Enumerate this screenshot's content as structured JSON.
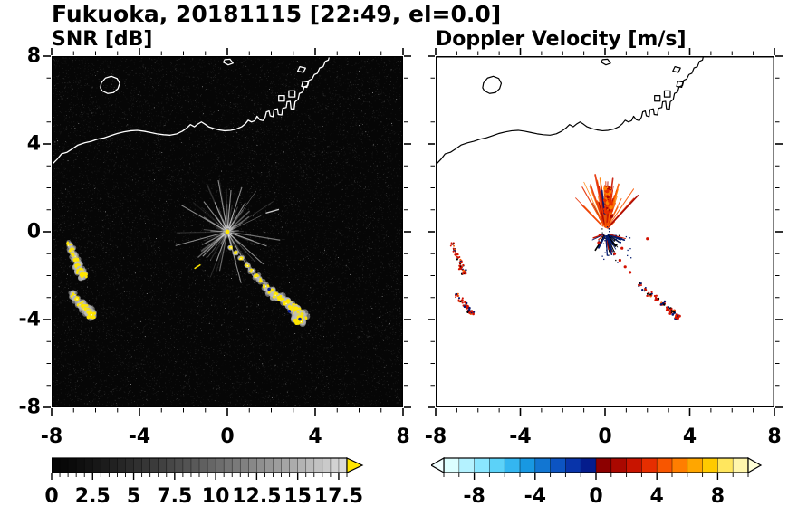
{
  "header": {
    "title": "Fukuoka, 20181115 [22:49, el=0.0]"
  },
  "chart_data": [
    {
      "type": "heatmap",
      "variant": "radar_ppi",
      "title": "SNR [dB]",
      "xlim": [
        -8,
        8
      ],
      "ylim": [
        -8,
        8
      ],
      "xticks": [
        -8,
        -4,
        0,
        4,
        8
      ],
      "yticks": [
        8,
        4,
        0,
        -4,
        -8
      ],
      "minor_tick_step": 1,
      "background": "#060606",
      "colorbar": {
        "min": 0,
        "max": 18,
        "box_step": 0.5,
        "tick_step": 0.5,
        "major_step": 2.5,
        "labels": [
          "0",
          "2.5",
          "5",
          "7.5",
          "10",
          "12.5",
          "15",
          "17.5"
        ],
        "label_values": [
          0,
          2.5,
          5,
          7.5,
          10,
          12.5,
          15,
          17.5
        ],
        "palette": "grayscale",
        "gray_min": 5,
        "gray_max": 222,
        "gamma": 1.3,
        "over_color": "#ffe600"
      },
      "features": {
        "noise": true,
        "streaks": {
          "center": [
            0,
            0
          ],
          "count": 72,
          "accent_angles": [
            58,
            72,
            85,
            100,
            113,
            128,
            150,
            195,
            225,
            250,
            285,
            300,
            318,
            340
          ]
        },
        "center_dot": {
          "xy": [
            0,
            0
          ],
          "color": "#ffe600"
        },
        "dashes": [
          {
            "from": [
              1.75,
              0.85
            ],
            "to": [
              2.35,
              1.02
            ],
            "color": "#c8c8c8",
            "width": 1.4
          },
          {
            "from": [
              -1.5,
              -1.68
            ],
            "to": [
              -1.22,
              -1.5
            ],
            "color": "#ffe600",
            "width": 1.6
          }
        ],
        "echo_chains": [
          {
            "points": [
              [
                0.15,
                -0.72
              ],
              [
                0.38,
                -0.95
              ],
              [
                0.62,
                -1.22
              ],
              [
                0.9,
                -1.52
              ],
              [
                1.12,
                -1.78
              ],
              [
                1.32,
                -2.02
              ],
              [
                1.52,
                -2.22
              ]
            ],
            "s0": 0.05,
            "s1": 0.1
          },
          {
            "points": [
              [
                1.78,
                -2.5
              ],
              [
                2.0,
                -2.72
              ],
              [
                2.2,
                -2.9
              ],
              [
                2.45,
                -3.05
              ],
              [
                2.72,
                -3.25
              ],
              [
                3.0,
                -3.45
              ],
              [
                3.2,
                -3.62
              ],
              [
                3.38,
                -3.82
              ],
              [
                3.28,
                -4.0
              ]
            ],
            "s0": 0.12,
            "s1": 0.2
          },
          {
            "points": [
              [
                -7.22,
                -0.55
              ],
              [
                -7.1,
                -0.82
              ],
              [
                -6.98,
                -1.08
              ],
              [
                -6.88,
                -1.32
              ],
              [
                -6.82,
                -1.58
              ],
              [
                -6.7,
                -1.8
              ],
              [
                -6.55,
                -1.98
              ]
            ],
            "s0": 0.1,
            "s1": 0.14
          },
          {
            "points": [
              [
                -7.0,
                -2.88
              ],
              [
                -6.85,
                -3.08
              ],
              [
                -6.68,
                -3.28
              ],
              [
                -6.5,
                -3.45
              ],
              [
                -6.35,
                -3.62
              ],
              [
                -6.2,
                -3.78
              ]
            ],
            "s0": 0.11,
            "s1": 0.16
          }
        ],
        "blue_specks": [
          [
            2.82,
            -3.62
          ],
          [
            3.3,
            -3.98
          ],
          [
            1.9,
            -2.62
          ]
        ]
      }
    },
    {
      "type": "heatmap",
      "variant": "radar_ppi",
      "title": "Doppler Velocity [m/s]",
      "xlim": [
        -8,
        8
      ],
      "ylim": [
        -8,
        8
      ],
      "xticks": [
        -8,
        -4,
        0,
        4,
        8
      ],
      "yticks": [
        8,
        4,
        0,
        -4,
        -8
      ],
      "minor_tick_step": 1,
      "background": "#ffffff",
      "colorbar": {
        "min": -10,
        "max": 10,
        "box_step": 1,
        "tick_step": 1,
        "major_values": [
          -8,
          -4,
          0,
          4,
          8
        ],
        "labels": [
          "-8",
          "-4",
          "0",
          "4",
          "8"
        ],
        "label_values": [
          -8,
          -4,
          0,
          4,
          8
        ],
        "palette": [
          "#dcffff",
          "#b4f2ff",
          "#8ae6ff",
          "#5cd2f8",
          "#34b6f0",
          "#1898e2",
          "#1276d2",
          "#0c54c2",
          "#0834aa",
          "#041c8c",
          "#8c0000",
          "#aa0800",
          "#c81400",
          "#e62e00",
          "#f85600",
          "#ff7e00",
          "#ffa600",
          "#ffca00",
          "#ffe65e",
          "#fff6ac"
        ],
        "under_color": "#f2ffff",
        "over_color": "#ffffd6"
      },
      "features": {
        "plume": {
          "origin": [
            0.05,
            0.1
          ],
          "count": 115,
          "core": [
            0.15,
            1.4
          ],
          "colors": [
            "#c81400",
            "#e62e00",
            "#f85600",
            "#ff7e00",
            "#aa0800"
          ],
          "navy": "#06126e"
        },
        "down_streaks": {
          "origin": [
            0.05,
            -0.08
          ],
          "count": 46,
          "navy": "#041c6e"
        },
        "dots": [
          [
            0.45,
            -1.0
          ],
          [
            0.7,
            -1.3
          ],
          [
            0.95,
            -1.6
          ],
          [
            1.18,
            -1.85
          ],
          [
            2.0,
            -0.32
          ],
          [
            -0.3,
            -0.5
          ],
          [
            0.8,
            -0.75
          ]
        ],
        "echo_chains": [
          {
            "points": [
              [
                1.62,
                -2.4
              ],
              [
                1.85,
                -2.62
              ],
              [
                2.1,
                -2.85
              ],
              [
                2.4,
                -3.02
              ],
              [
                2.7,
                -3.28
              ],
              [
                3.0,
                -3.5
              ],
              [
                3.22,
                -3.68
              ],
              [
                3.4,
                -3.88
              ]
            ],
            "s0": 0.1,
            "s1": 0.16
          },
          {
            "points": [
              [
                -7.22,
                -0.58
              ],
              [
                -7.1,
                -0.85
              ],
              [
                -6.98,
                -1.1
              ],
              [
                -6.88,
                -1.35
              ],
              [
                -6.8,
                -1.6
              ],
              [
                -6.68,
                -1.82
              ]
            ],
            "s0": 0.1,
            "s1": 0.13
          },
          {
            "points": [
              [
                -6.98,
                -2.9
              ],
              [
                -6.83,
                -3.1
              ],
              [
                -6.66,
                -3.3
              ],
              [
                -6.5,
                -3.48
              ],
              [
                -6.35,
                -3.64
              ]
            ],
            "s0": 0.1,
            "s1": 0.15
          }
        ]
      }
    }
  ],
  "basemap": {
    "stroke_left": "#ffffff",
    "stroke_right": "#000000",
    "lines": [
      [
        [
          -8,
          3.05
        ],
        [
          -7.75,
          3.3
        ],
        [
          -7.55,
          3.55
        ],
        [
          -7.3,
          3.62
        ],
        [
          -7.05,
          3.78
        ],
        [
          -6.8,
          3.95
        ],
        [
          -6.5,
          4.05
        ],
        [
          -6.2,
          4.12
        ],
        [
          -5.9,
          4.22
        ],
        [
          -5.6,
          4.28
        ],
        [
          -5.3,
          4.38
        ],
        [
          -5.0,
          4.48
        ],
        [
          -4.7,
          4.55
        ],
        [
          -4.4,
          4.6
        ],
        [
          -4.1,
          4.62
        ],
        [
          -3.8,
          4.58
        ],
        [
          -3.5,
          4.52
        ],
        [
          -3.2,
          4.46
        ],
        [
          -2.9,
          4.42
        ],
        [
          -2.6,
          4.4
        ],
        [
          -2.3,
          4.46
        ],
        [
          -2.05,
          4.58
        ],
        [
          -1.85,
          4.72
        ],
        [
          -1.68,
          4.88
        ],
        [
          -1.5,
          4.78
        ],
        [
          -1.35,
          4.9
        ],
        [
          -1.18,
          5.0
        ],
        [
          -1.02,
          4.9
        ],
        [
          -0.85,
          4.78
        ],
        [
          -0.62,
          4.7
        ],
        [
          -0.38,
          4.64
        ],
        [
          -0.12,
          4.6
        ],
        [
          0.15,
          4.62
        ],
        [
          0.42,
          4.68
        ],
        [
          0.65,
          4.78
        ],
        [
          0.82,
          4.92
        ],
        [
          0.95,
          5.08
        ],
        [
          1.1,
          5.0
        ],
        [
          1.25,
          5.06
        ],
        [
          1.35,
          5.26
        ],
        [
          1.48,
          5.1
        ],
        [
          1.62,
          5.06
        ],
        [
          1.72,
          5.22
        ],
        [
          1.78,
          5.46
        ],
        [
          1.9,
          5.5
        ],
        [
          1.95,
          5.28
        ],
        [
          2.08,
          5.24
        ],
        [
          2.12,
          5.56
        ],
        [
          2.28,
          5.6
        ],
        [
          2.32,
          5.34
        ],
        [
          2.48,
          5.32
        ],
        [
          2.52,
          5.62
        ],
        [
          2.68,
          5.66
        ],
        [
          2.72,
          5.92
        ],
        [
          2.86,
          5.94
        ],
        [
          2.9,
          5.6
        ],
        [
          3.04,
          5.58
        ],
        [
          3.08,
          5.92
        ],
        [
          3.22,
          6.02
        ],
        [
          3.28,
          6.3
        ],
        [
          3.42,
          6.36
        ],
        [
          3.5,
          6.6
        ],
        [
          3.66,
          6.66
        ],
        [
          3.72,
          6.9
        ],
        [
          3.86,
          6.96
        ],
        [
          3.96,
          7.16
        ],
        [
          4.1,
          7.22
        ],
        [
          4.2,
          7.46
        ],
        [
          4.36,
          7.52
        ],
        [
          4.46,
          7.76
        ],
        [
          4.6,
          7.82
        ],
        [
          4.66,
          8.05
        ]
      ],
      [
        [
          -5.7,
          6.42
        ],
        [
          -5.45,
          6.3
        ],
        [
          -5.18,
          6.34
        ],
        [
          -4.98,
          6.52
        ],
        [
          -4.9,
          6.76
        ],
        [
          -5.02,
          6.98
        ],
        [
          -5.28,
          7.08
        ],
        [
          -5.55,
          7.0
        ],
        [
          -5.74,
          6.78
        ],
        [
          -5.78,
          6.56
        ],
        [
          -5.7,
          6.42
        ]
      ],
      [
        [
          -0.18,
          7.72
        ],
        [
          0.04,
          7.6
        ],
        [
          0.26,
          7.68
        ],
        [
          0.12,
          7.86
        ],
        [
          -0.12,
          7.84
        ],
        [
          -0.18,
          7.72
        ]
      ],
      [
        [
          2.34,
          5.95
        ],
        [
          2.6,
          5.95
        ],
        [
          2.6,
          6.2
        ],
        [
          2.34,
          6.2
        ],
        [
          2.34,
          5.95
        ]
      ],
      [
        [
          2.8,
          6.14
        ],
        [
          3.08,
          6.14
        ],
        [
          3.08,
          6.42
        ],
        [
          2.8,
          6.42
        ],
        [
          2.8,
          6.14
        ]
      ],
      [
        [
          3.38,
          6.62
        ],
        [
          3.62,
          6.58
        ],
        [
          3.68,
          6.82
        ],
        [
          3.44,
          6.86
        ],
        [
          3.38,
          6.62
        ]
      ],
      [
        [
          3.2,
          7.32
        ],
        [
          3.46,
          7.26
        ],
        [
          3.56,
          7.46
        ],
        [
          3.3,
          7.52
        ],
        [
          3.2,
          7.32
        ]
      ]
    ]
  }
}
